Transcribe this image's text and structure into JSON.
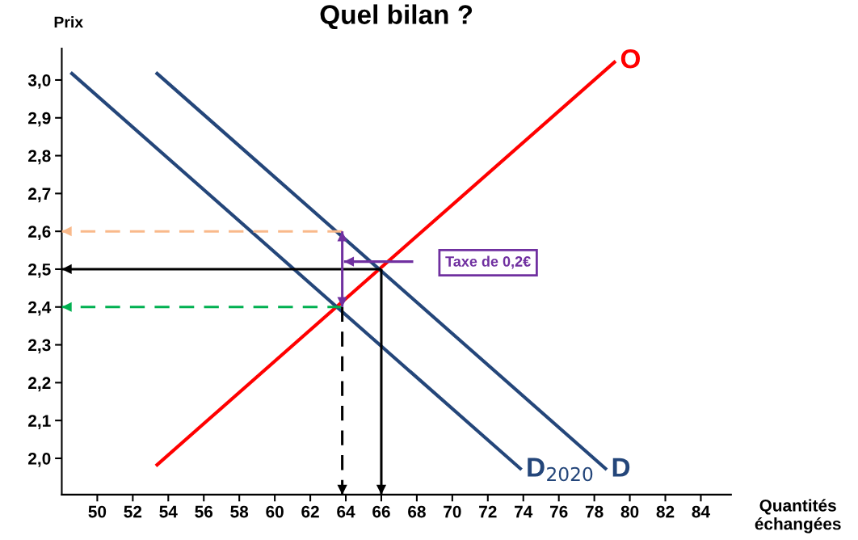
{
  "chart_data": {
    "type": "line",
    "title": "Quel bilan ?",
    "xlabel": "Quantités\néchangées",
    "ylabel": "Prix",
    "xlim": [
      48,
      85.7
    ],
    "ylim": [
      1.904,
      3.083
    ],
    "xticks": [
      50,
      52,
      54,
      56,
      58,
      60,
      62,
      64,
      66,
      68,
      70,
      72,
      74,
      76,
      78,
      80,
      82,
      84
    ],
    "yticks": [
      {
        "value": 2.0,
        "label": "2,0"
      },
      {
        "value": 2.1,
        "label": "2,1"
      },
      {
        "value": 2.2,
        "label": "2,2"
      },
      {
        "value": 2.3,
        "label": "2,3"
      },
      {
        "value": 2.4,
        "label": "2,4"
      },
      {
        "value": 2.5,
        "label": "2,5"
      },
      {
        "value": 2.6,
        "label": "2,6"
      },
      {
        "value": 2.7,
        "label": "2,7"
      },
      {
        "value": 2.8,
        "label": "2,8"
      },
      {
        "value": 2.9,
        "label": "2,9"
      },
      {
        "value": 3.0,
        "label": "3,0"
      }
    ],
    "grid": false,
    "legend": false,
    "marker": "none",
    "series": [
      {
        "name": "O",
        "color": "#ff0000",
        "x": [
          53.3,
          79.2
        ],
        "values": [
          1.98,
          3.05
        ]
      },
      {
        "name": "D",
        "color": "#24467a",
        "x": [
          53.3,
          78.7
        ],
        "values": [
          3.02,
          1.97
        ]
      },
      {
        "name": "D$_{2020}$",
        "color": "#24467a",
        "x": [
          48.5,
          73.9
        ],
        "values": [
          3.02,
          1.97
        ]
      },
      {
        "color": "#f9b98a",
        "x": [
          63.8,
          48
        ],
        "values": [
          2.6,
          2.6
        ],
        "line_style": "dashed"
      },
      {
        "color": "#000000",
        "x": [
          66,
          48
        ],
        "values": [
          2.5,
          2.5
        ],
        "line_style": "solid"
      },
      {
        "color": "#00b050",
        "x": [
          63.8,
          48
        ],
        "values": [
          2.4,
          2.4
        ],
        "line_style": "dashed"
      },
      {
        "color": "#000000",
        "x": [
          63.8,
          63.8
        ],
        "values": [
          2.4,
          1.904
        ],
        "line_style": "dashed"
      },
      {
        "color": "#000000",
        "x": [
          66,
          66
        ],
        "values": [
          2.5,
          1.904
        ],
        "line_style": "solid"
      },
      {
        "color": "#7030a0",
        "x": [
          63.8,
          63.8
        ],
        "values": [
          2.5,
          2.6
        ],
        "line_style": "solid"
      },
      {
        "color": "#7030a0",
        "x": [
          63.8,
          63.8
        ],
        "values": [
          2.5,
          2.4
        ],
        "line_style": "solid"
      },
      {
        "color": "#7030a0",
        "x": [
          67.8,
          63.9
        ],
        "values": [
          2.52,
          2.52
        ],
        "line_style": "solid"
      }
    ],
    "annotations": [
      "Taxe de 0,2€"
    ]
  }
}
